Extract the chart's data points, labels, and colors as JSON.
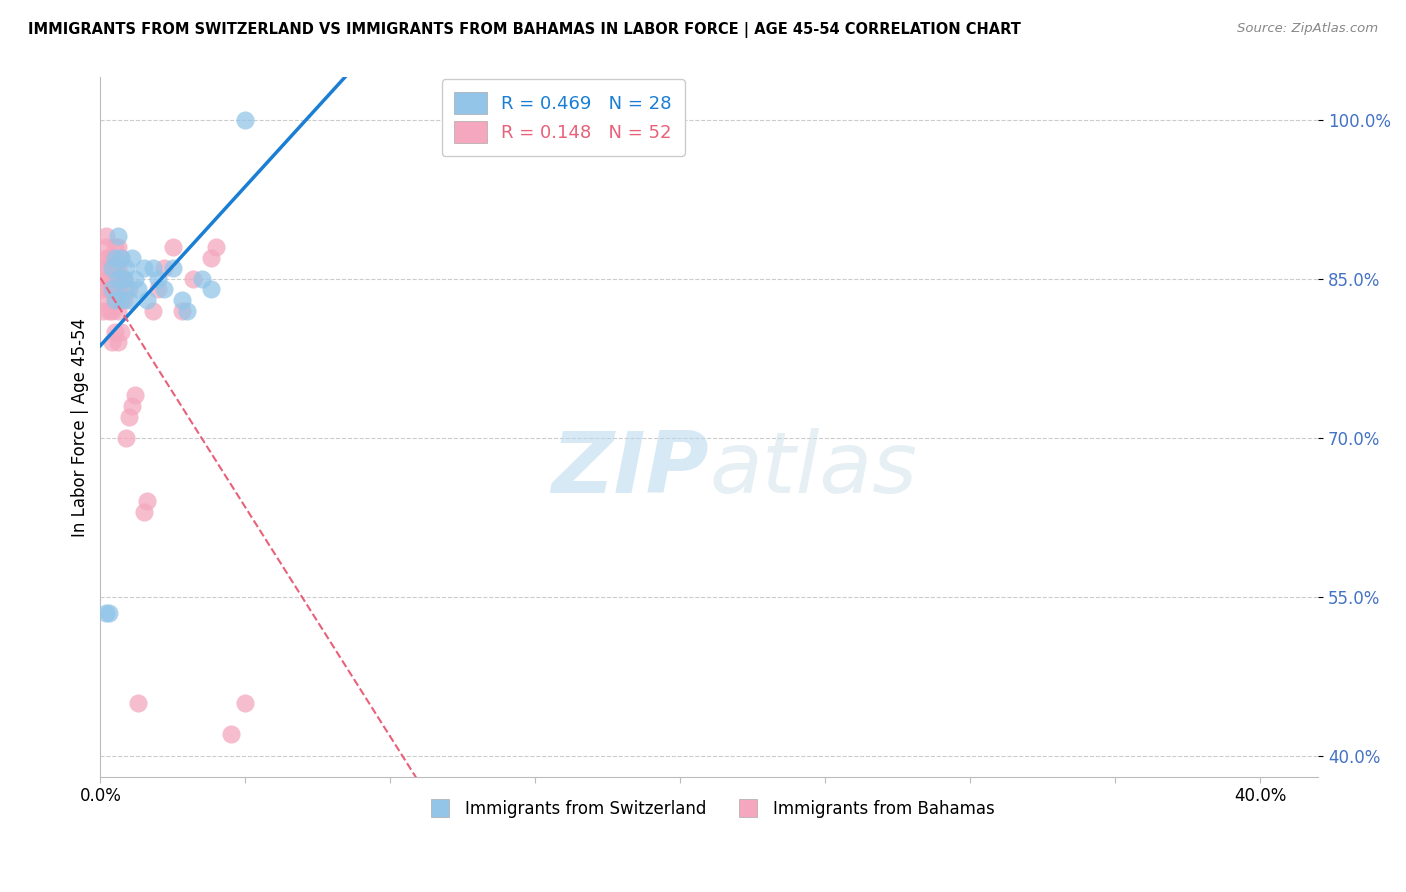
{
  "title": "IMMIGRANTS FROM SWITZERLAND VS IMMIGRANTS FROM BAHAMAS IN LABOR FORCE | AGE 45-54 CORRELATION CHART",
  "source": "Source: ZipAtlas.com",
  "ylabel": "In Labor Force | Age 45-54",
  "xlim": [
    0.0,
    0.42
  ],
  "ylim": [
    0.38,
    1.04
  ],
  "yticks": [
    0.4,
    0.55,
    0.7,
    0.85,
    1.0
  ],
  "ytick_labels": [
    "40.0%",
    "55.0%",
    "70.0%",
    "85.0%",
    "100.0%"
  ],
  "xticks": [
    0.0,
    0.05,
    0.1,
    0.15,
    0.2,
    0.25,
    0.3,
    0.35,
    0.4
  ],
  "xtick_labels": [
    "0.0%",
    "",
    "",
    "",
    "",
    "",
    "",
    "",
    "40.0%"
  ],
  "legend_R_switzerland": "R = 0.469",
  "legend_N_switzerland": "N = 28",
  "legend_R_bahamas": "R = 0.148",
  "legend_N_bahamas": "N = 52",
  "switzerland_color": "#92c5e8",
  "bahamas_color": "#f4a7be",
  "trendline_switzerland_color": "#1a7fd4",
  "trendline_bahamas_color": "#e8617a",
  "watermark_zip": "ZIP",
  "watermark_atlas": "atlas",
  "switzerland_x": [
    0.002,
    0.003,
    0.004,
    0.004,
    0.005,
    0.005,
    0.006,
    0.006,
    0.007,
    0.007,
    0.008,
    0.009,
    0.009,
    0.01,
    0.011,
    0.012,
    0.013,
    0.015,
    0.016,
    0.018,
    0.02,
    0.022,
    0.025,
    0.028,
    0.03,
    0.035,
    0.038,
    0.05
  ],
  "switzerland_y": [
    0.535,
    0.535,
    0.84,
    0.86,
    0.83,
    0.87,
    0.85,
    0.89,
    0.83,
    0.87,
    0.85,
    0.84,
    0.86,
    0.83,
    0.87,
    0.85,
    0.84,
    0.86,
    0.83,
    0.86,
    0.85,
    0.84,
    0.86,
    0.83,
    0.82,
    0.85,
    0.84,
    1.0
  ],
  "bahamas_x": [
    0.001,
    0.001,
    0.001,
    0.002,
    0.002,
    0.002,
    0.002,
    0.002,
    0.003,
    0.003,
    0.003,
    0.003,
    0.003,
    0.004,
    0.004,
    0.004,
    0.004,
    0.004,
    0.005,
    0.005,
    0.005,
    0.005,
    0.005,
    0.006,
    0.006,
    0.006,
    0.006,
    0.006,
    0.007,
    0.007,
    0.007,
    0.007,
    0.008,
    0.008,
    0.009,
    0.01,
    0.01,
    0.011,
    0.012,
    0.013,
    0.015,
    0.016,
    0.018,
    0.02,
    0.022,
    0.025,
    0.028,
    0.032,
    0.038,
    0.04,
    0.045,
    0.05
  ],
  "bahamas_y": [
    0.82,
    0.84,
    0.86,
    0.83,
    0.85,
    0.87,
    0.88,
    0.89,
    0.82,
    0.84,
    0.85,
    0.86,
    0.87,
    0.79,
    0.82,
    0.84,
    0.85,
    0.87,
    0.8,
    0.83,
    0.84,
    0.86,
    0.88,
    0.79,
    0.82,
    0.84,
    0.86,
    0.88,
    0.8,
    0.83,
    0.85,
    0.87,
    0.83,
    0.85,
    0.7,
    0.72,
    0.84,
    0.73,
    0.74,
    0.45,
    0.63,
    0.64,
    0.82,
    0.84,
    0.86,
    0.88,
    0.82,
    0.85,
    0.87,
    0.88,
    0.42,
    0.45
  ]
}
